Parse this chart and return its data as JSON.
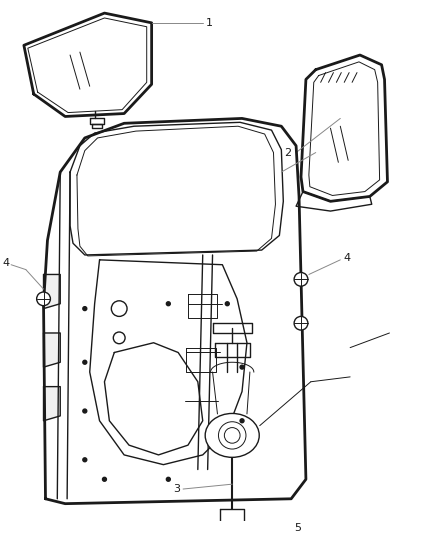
{
  "bg_color": "#ffffff",
  "line_color": "#1a1a1a",
  "callout_color": "#888888",
  "figsize": [
    4.38,
    5.33
  ],
  "dpi": 100
}
